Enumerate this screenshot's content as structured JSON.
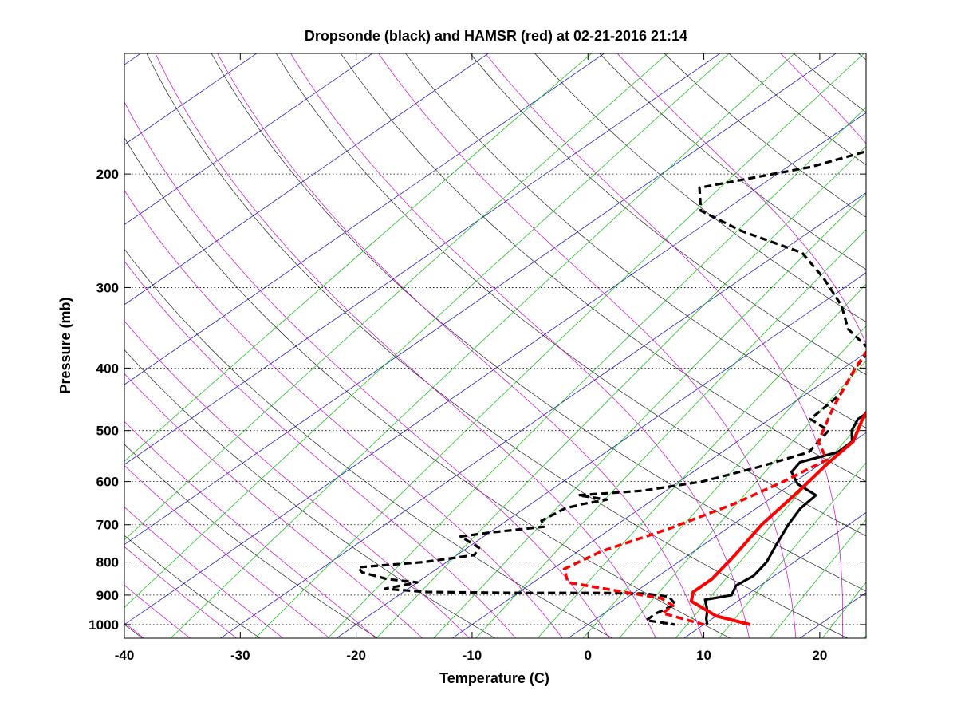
{
  "chart_data": {
    "type": "line",
    "title": "Dropsonde (black) and HAMSR (red) at 02-21-2016 21:14",
    "xlabel": "Temperature (C)",
    "ylabel": "Pressure (mb)",
    "xlim": [
      -40,
      24
    ],
    "ylim": [
      1050,
      130
    ],
    "y_scale": "log",
    "x_ticks": [
      -40,
      -30,
      -20,
      -10,
      0,
      10,
      20
    ],
    "y_ticks": [
      200,
      300,
      400,
      500,
      600,
      700,
      800,
      900,
      1000
    ],
    "grid": "dotted horizontal at pressure ticks",
    "background": "skew-T log-p diagram with isotherms, dry adiabats, moist adiabats and mixing-ratio lines",
    "colors": {
      "dropsonde": "#000000",
      "hamsr": "#ff0000",
      "isotherm": "#0000bb",
      "dry_adiabat": "#000000",
      "moist_adiabat": "#cc00cc",
      "mixing_ratio": "#00bb00"
    },
    "series": [
      {
        "id": "dropsonde_temperature",
        "style": "solid",
        "color": "#000000",
        "points": [
          [
            9.3,
            130
          ],
          [
            8.9,
            137
          ],
          [
            6.5,
            145
          ],
          [
            5.6,
            160
          ],
          [
            5.5,
            170
          ],
          [
            5.3,
            178
          ],
          [
            3.5,
            185
          ],
          [
            0,
            197
          ],
          [
            -4,
            205
          ],
          [
            -8,
            212
          ],
          [
            -13,
            222
          ],
          [
            -17,
            230
          ],
          [
            -17.5,
            238
          ],
          [
            -15,
            250
          ],
          [
            -12,
            272
          ],
          [
            -8,
            300
          ],
          [
            -5,
            335
          ],
          [
            -4.5,
            350
          ],
          [
            -3.3,
            380
          ],
          [
            -3,
            400
          ],
          [
            -2.6,
            420
          ],
          [
            -2.3,
            450
          ],
          [
            -2.4,
            480
          ],
          [
            -1.5,
            500
          ],
          [
            -0.1,
            520
          ],
          [
            0,
            540
          ],
          [
            -2,
            560
          ],
          [
            -1.5,
            580
          ],
          [
            0.5,
            605
          ],
          [
            3.5,
            630
          ],
          [
            3.8,
            660
          ],
          [
            4.8,
            700
          ],
          [
            6.5,
            760
          ],
          [
            7.6,
            800
          ],
          [
            8.2,
            840
          ],
          [
            7.9,
            870
          ],
          [
            8.7,
            900
          ],
          [
            7,
            915
          ],
          [
            8.5,
            950
          ],
          [
            9.5,
            980
          ],
          [
            10.3,
            1000
          ]
        ]
      },
      {
        "id": "dropsonde_dewpoint",
        "style": "dashed",
        "color": "#000000",
        "points": [
          [
            -22,
            130
          ],
          [
            -25,
            140
          ],
          [
            -28,
            155
          ],
          [
            -31,
            170
          ],
          [
            -38,
            195
          ],
          [
            -45,
            210
          ],
          [
            -42,
            228
          ],
          [
            -36,
            245
          ],
          [
            -28,
            265
          ],
          [
            -23,
            290
          ],
          [
            -18,
            320
          ],
          [
            -14.5,
            348
          ],
          [
            -10,
            375
          ],
          [
            -9,
            400
          ],
          [
            -7,
            440
          ],
          [
            -6.5,
            480
          ],
          [
            -3.5,
            500
          ],
          [
            -2.5,
            540
          ],
          [
            -5,
            570
          ],
          [
            -8,
            600
          ],
          [
            -12,
            620
          ],
          [
            -17,
            630
          ],
          [
            -14,
            640
          ],
          [
            -15.5,
            650
          ],
          [
            -16.5,
            660
          ],
          [
            -17,
            690
          ],
          [
            -16,
            705
          ],
          [
            -20,
            720
          ],
          [
            -22,
            730
          ],
          [
            -19,
            760
          ],
          [
            -18.5,
            780
          ],
          [
            -22,
            800
          ],
          [
            -27,
            815
          ],
          [
            -26,
            830
          ],
          [
            -23,
            850
          ],
          [
            -20,
            860
          ],
          [
            -22,
            880
          ],
          [
            -18,
            890
          ],
          [
            -10,
            893
          ],
          [
            -3,
            893
          ],
          [
            1,
            895
          ],
          [
            3.5,
            905
          ],
          [
            5,
            930
          ],
          [
            4.5,
            960
          ],
          [
            4.5,
            985
          ],
          [
            7.5,
            1000
          ]
        ]
      },
      {
        "id": "hamsr_temperature",
        "style": "solid",
        "color": "#ff0000",
        "points": [
          [
            4.5,
            130
          ],
          [
            -1,
            160
          ],
          [
            -4,
            190
          ],
          [
            -6.5,
            205
          ],
          [
            -8,
            230
          ],
          [
            -9.5,
            255
          ],
          [
            -9.5,
            275
          ],
          [
            -9,
            300
          ],
          [
            -8,
            340
          ],
          [
            -6.5,
            380
          ],
          [
            -4.5,
            425
          ],
          [
            -2,
            480
          ],
          [
            0,
            520
          ],
          [
            0.5,
            560
          ],
          [
            1.5,
            620
          ],
          [
            2.5,
            700
          ],
          [
            4,
            780
          ],
          [
            5,
            850
          ],
          [
            5,
            890
          ],
          [
            6,
            920
          ],
          [
            10,
            970
          ],
          [
            14,
            1000
          ]
        ]
      },
      {
        "id": "hamsr_dewpoint",
        "style": "dashed",
        "color": "#ff0000",
        "points": [
          [
            -20,
            130
          ],
          [
            -25,
            165
          ],
          [
            -28,
            200
          ],
          [
            -24,
            235
          ],
          [
            -20,
            265
          ],
          [
            -16,
            300
          ],
          [
            -12,
            340
          ],
          [
            -9,
            400
          ],
          [
            -6,
            460
          ],
          [
            -3,
            520
          ],
          [
            0,
            555
          ],
          [
            -1,
            600
          ],
          [
            -2.5,
            650
          ],
          [
            -5,
            710
          ],
          [
            -8,
            770
          ],
          [
            -9,
            820
          ],
          [
            -7,
            860
          ],
          [
            -1,
            890
          ],
          [
            3,
            910
          ],
          [
            5,
            935
          ],
          [
            5,
            960
          ],
          [
            10,
            1000
          ]
        ]
      }
    ]
  }
}
